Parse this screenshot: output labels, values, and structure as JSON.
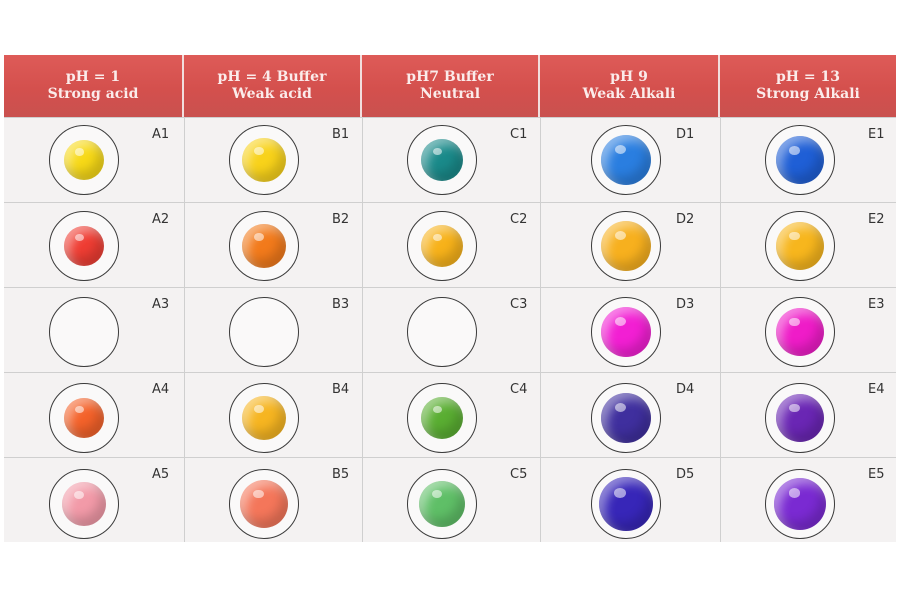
{
  "columns": [
    {
      "line1": "pH = 1",
      "line2": "Strong acid"
    },
    {
      "line1": "pH = 4 Buffer",
      "line2": "Weak acid"
    },
    {
      "line1": "pH7 Buffer",
      "line2": "Neutral"
    },
    {
      "line1": "pH 9",
      "line2": "Weak Alkali"
    },
    {
      "line1": "pH = 13",
      "line2": "Strong Alkali"
    }
  ],
  "wells": [
    [
      {
        "label": "A1",
        "color": "#f7d917"
      },
      {
        "label": "B1",
        "color": "#f8d21a"
      },
      {
        "label": "C1",
        "color": "#1a8a8a"
      },
      {
        "label": "D1",
        "color": "#2a7ee0"
      },
      {
        "label": "E1",
        "color": "#1f5fd6"
      }
    ],
    [
      {
        "label": "A2",
        "color": "#ef3d33"
      },
      {
        "label": "B2",
        "color": "#f27a1b"
      },
      {
        "label": "C2",
        "color": "#f7b21a"
      },
      {
        "label": "D2",
        "color": "#f7b01e"
      },
      {
        "label": "E2",
        "color": "#f7b61d"
      }
    ],
    [
      {
        "label": "A3",
        "color": "#ffffff"
      },
      {
        "label": "B3",
        "color": "#ffffff"
      },
      {
        "label": "C3",
        "color": "#ffffff"
      },
      {
        "label": "D3",
        "color": "#f21fd3"
      },
      {
        "label": "E3",
        "color": "#ef1cc8"
      }
    ],
    [
      {
        "label": "A4",
        "color": "#f4622a"
      },
      {
        "label": "B4",
        "color": "#f6b521"
      },
      {
        "label": "C4",
        "color": "#5aae32"
      },
      {
        "label": "D4",
        "color": "#3f2f9e"
      },
      {
        "label": "E4",
        "color": "#6a26b4"
      }
    ],
    [
      {
        "label": "A5",
        "color": "#f29aa8"
      },
      {
        "label": "B5",
        "color": "#f4765a"
      },
      {
        "label": "C5",
        "color": "#5fbf67"
      },
      {
        "label": "D5",
        "color": "#3726b8"
      },
      {
        "label": "E5",
        "color": "#7a2ad2"
      }
    ]
  ]
}
